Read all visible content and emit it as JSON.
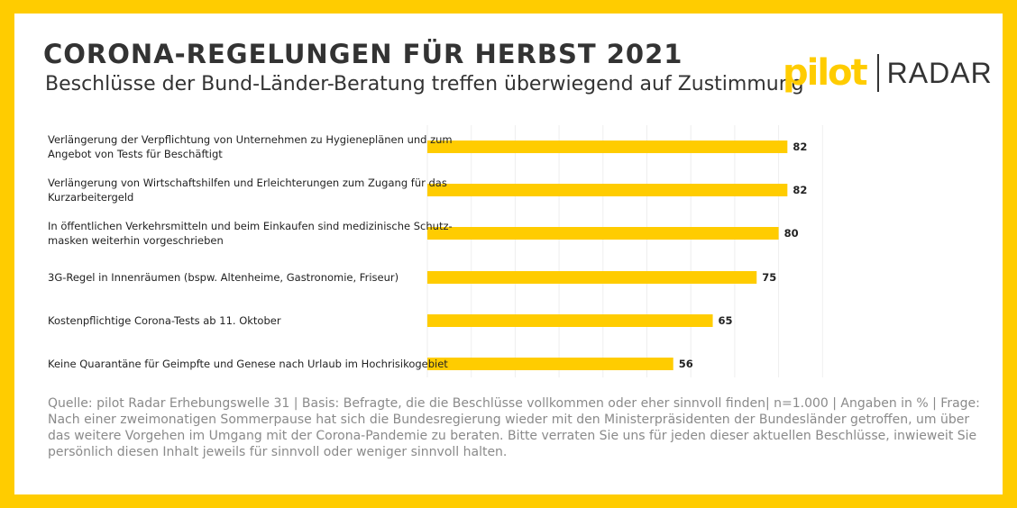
{
  "header": {
    "title": "CORONA-REGELUNGEN FÜR HERBST 2021",
    "subtitle": "Beschlüsse der Bund-Länder-Beratung treffen überwiegend auf Zustimmung"
  },
  "logo": {
    "pilot_text": "pilot",
    "radar_text": "RADAR"
  },
  "colors": {
    "accent": "#FFCC00",
    "text": "#333333",
    "gridline": "#eeeeee",
    "footnote": "#8a8a8a"
  },
  "chart_data": {
    "type": "bar",
    "orientation": "horizontal",
    "categories": [
      [
        "Verlängerung der Verpflichtung von Unternehmen zu Hygieneplänen und zum",
        "Angebot von Tests für Beschäftigt"
      ],
      [
        "Verlängerung von Wirtschaftshilfen und Erleichterungen zum Zugang für das",
        "Kurzarbeitergeld"
      ],
      [
        "In öffentlichen Verkehrsmitteln und beim Einkaufen sind medizinische Schutz-",
        "masken weiterhin vorgeschrieben"
      ],
      [
        "3G-Regel in Innenräumen (bspw. Altenheime, Gastronomie, Friseur)"
      ],
      [
        "Kostenpflichtige Corona-Tests ab 11. Oktober"
      ],
      [
        "Keine Quarantäne für Geimpfte und Genese nach Urlaub im Hochrisikogebiet"
      ]
    ],
    "values": [
      82,
      82,
      80,
      75,
      65,
      56
    ],
    "xlim": [
      0,
      100
    ],
    "grid": true,
    "legend": "none"
  },
  "footnote": "Quelle: pilot Radar Erhebungswelle 31 | Basis: Befragte, die die Beschlüsse vollkommen oder eher sinnvoll finden| n=1.000 | Angaben in % | Frage: Nach einer zweimonatigen Sommerpause hat sich die Bundesregierung wieder mit den Ministerpräsidenten der Bundesländer getroffen, um über das weitere Vorgehen im Umgang mit der Corona-Pandemie zu beraten. Bitte verraten Sie uns für jeden dieser aktuellen Beschlüsse, inwieweit Sie persönlich diesen Inhalt jeweils für sinnvoll oder weniger sinnvoll halten."
}
